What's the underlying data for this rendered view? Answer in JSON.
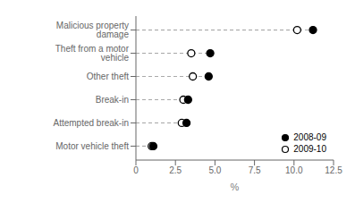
{
  "chart_data": {
    "type": "dot",
    "orientation": "horizontal",
    "xlabel": "%",
    "categories": [
      "Malicious property damage",
      "Theft from a motor vehicle",
      "Other theft",
      "Break-in",
      "Attempted break-in",
      "Motor vehicle theft"
    ],
    "series": [
      {
        "name": "2008-09",
        "color": "#000000",
        "marker": "circle",
        "values": [
          11.2,
          4.7,
          4.6,
          3.3,
          3.2,
          1.1
        ]
      },
      {
        "name": "2009-10",
        "color": "#000000",
        "marker": "open_circle",
        "values": [
          10.2,
          3.5,
          3.6,
          3.0,
          2.9,
          1.0
        ]
      }
    ],
    "xlim": [
      0,
      12.5
    ],
    "xticks": [
      0,
      2.5,
      {
        "value": 5,
        "label": "5.0"
      },
      7.5,
      {
        "value": 10,
        "label": "10.0"
      },
      12.5
    ],
    "grid": false,
    "legend": "lower right",
    "line_style": "dashed"
  }
}
